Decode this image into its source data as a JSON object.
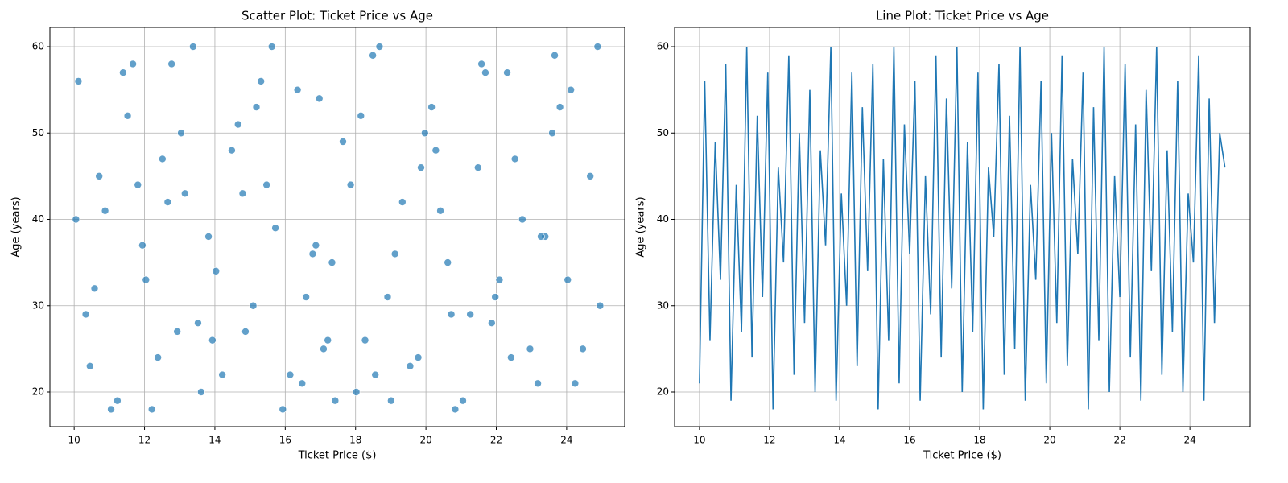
{
  "chart_data": [
    {
      "type": "scatter",
      "title": "Scatter Plot: Ticket Price vs Age",
      "xlabel": "Ticket Price ($)",
      "ylabel": "Age (years)",
      "color": "#1f77b4",
      "grid": true,
      "xlim": [
        9.31,
        25.65
      ],
      "ylim": [
        15.99,
        62.24
      ],
      "xticks": [
        10,
        12,
        14,
        16,
        18,
        20,
        22,
        24
      ],
      "yticks": [
        20,
        30,
        40,
        50,
        60
      ],
      "x": [
        10.12,
        10.45,
        10.88,
        11.23,
        11.67,
        12.04,
        12.51,
        12.93,
        13.38,
        13.82,
        14.21,
        14.66,
        15.09,
        15.47,
        15.93,
        16.35,
        16.78,
        17.21,
        17.64,
        18.02,
        18.49,
        18.91,
        19.33,
        19.78,
        20.16,
        20.62,
        21.05,
        21.48,
        21.87,
        22.31,
        22.74,
        23.18,
        23.59,
        24.03,
        24.46,
        24.88,
        10.33,
        10.71,
        11.05,
        11.52,
        11.94,
        12.38,
        12.77,
        13.15,
        13.61,
        14.03,
        14.48,
        14.87,
        15.31,
        15.72,
        16.14,
        16.59,
        16.97,
        17.42,
        17.86,
        18.27,
        18.68,
        19.12,
        19.55,
        19.97,
        20.41,
        20.83,
        21.26,
        21.69,
        22.09,
        22.53,
        22.96,
        23.39,
        23.81,
        24.24,
        24.67,
        10.05,
        10.58,
        11.39,
        12.21,
        13.04,
        13.93,
        14.79,
        15.62,
        16.48,
        17.33,
        18.15,
        19.01,
        19.86,
        20.72,
        21.58,
        22.42,
        23.27,
        24.12,
        24.95,
        11.81,
        13.52,
        15.18,
        16.87,
        18.56,
        20.28,
        21.97,
        23.66,
        12.66,
        17.09
      ],
      "values": [
        56,
        23,
        41,
        19,
        58,
        33,
        47,
        27,
        60,
        38,
        22,
        51,
        30,
        44,
        18,
        55,
        36,
        26,
        49,
        20,
        59,
        31,
        42,
        24,
        53,
        35,
        19,
        46,
        28,
        57,
        40,
        21,
        50,
        33,
        25,
        60,
        29,
        45,
        18,
        52,
        37,
        24,
        58,
        43,
        20,
        34,
        48,
        27,
        56,
        39,
        22,
        31,
        54,
        19,
        44,
        26,
        60,
        36,
        23,
        50,
        41,
        18,
        29,
        57,
        33,
        47,
        25,
        38,
        53,
        21,
        45,
        40,
        32,
        57,
        18,
        50,
        26,
        43,
        60,
        21,
        35,
        52,
        19,
        46,
        29,
        58,
        24,
        38,
        55,
        30,
        44,
        28,
        53,
        37,
        22,
        48,
        31,
        59,
        42,
        25
      ]
    },
    {
      "type": "line",
      "title": "Line Plot: Ticket Price vs Age",
      "xlabel": "Ticket Price ($)",
      "ylabel": "Age (years)",
      "color": "#1f77b4",
      "grid": true,
      "xlim": [
        9.29,
        25.72
      ],
      "ylim": [
        15.99,
        62.24
      ],
      "xticks": [
        10,
        12,
        14,
        16,
        18,
        20,
        22,
        24
      ],
      "yticks": [
        20,
        30,
        40,
        50,
        60
      ],
      "x": [
        10,
        10.15,
        10.3,
        10.45,
        10.6,
        10.75,
        10.9,
        11.05,
        11.2,
        11.35,
        11.5,
        11.65,
        11.8,
        11.95,
        12.1,
        12.25,
        12.4,
        12.55,
        12.7,
        12.85,
        13,
        13.15,
        13.3,
        13.45,
        13.6,
        13.75,
        13.9,
        14.05,
        14.2,
        14.35,
        14.5,
        14.65,
        14.8,
        14.95,
        15.1,
        15.25,
        15.4,
        15.55,
        15.7,
        15.85,
        16,
        16.15,
        16.3,
        16.45,
        16.6,
        16.75,
        16.9,
        17.05,
        17.2,
        17.35,
        17.5,
        17.65,
        17.8,
        17.95,
        18.1,
        18.25,
        18.4,
        18.55,
        18.7,
        18.85,
        19,
        19.15,
        19.3,
        19.45,
        19.6,
        19.75,
        19.9,
        20.05,
        20.2,
        20.35,
        20.5,
        20.65,
        20.8,
        20.95,
        21.1,
        21.25,
        21.4,
        21.55,
        21.7,
        21.85,
        22,
        22.15,
        22.3,
        22.45,
        22.6,
        22.75,
        22.9,
        23.05,
        23.2,
        23.35,
        23.5,
        23.65,
        23.8,
        23.95,
        24.1,
        24.25,
        24.4,
        24.55,
        24.7,
        24.85,
        25
      ],
      "values": [
        21,
        56,
        26,
        49,
        33,
        58,
        19,
        44,
        27,
        60,
        24,
        52,
        31,
        57,
        18,
        46,
        35,
        59,
        22,
        50,
        28,
        55,
        20,
        48,
        37,
        60,
        19,
        43,
        30,
        57,
        23,
        53,
        34,
        58,
        18,
        47,
        26,
        60,
        21,
        51,
        36,
        56,
        19,
        45,
        29,
        59,
        24,
        54,
        32,
        60,
        20,
        49,
        27,
        57,
        18,
        46,
        38,
        58,
        22,
        52,
        25,
        60,
        19,
        44,
        33,
        56,
        21,
        50,
        28,
        59,
        23,
        47,
        36,
        57,
        18,
        53,
        26,
        60,
        20,
        45,
        31,
        58,
        24,
        51,
        19,
        55,
        34,
        60,
        22,
        48,
        27,
        56,
        20,
        43,
        35,
        59,
        19,
        54,
        28,
        50,
        46
      ]
    }
  ]
}
